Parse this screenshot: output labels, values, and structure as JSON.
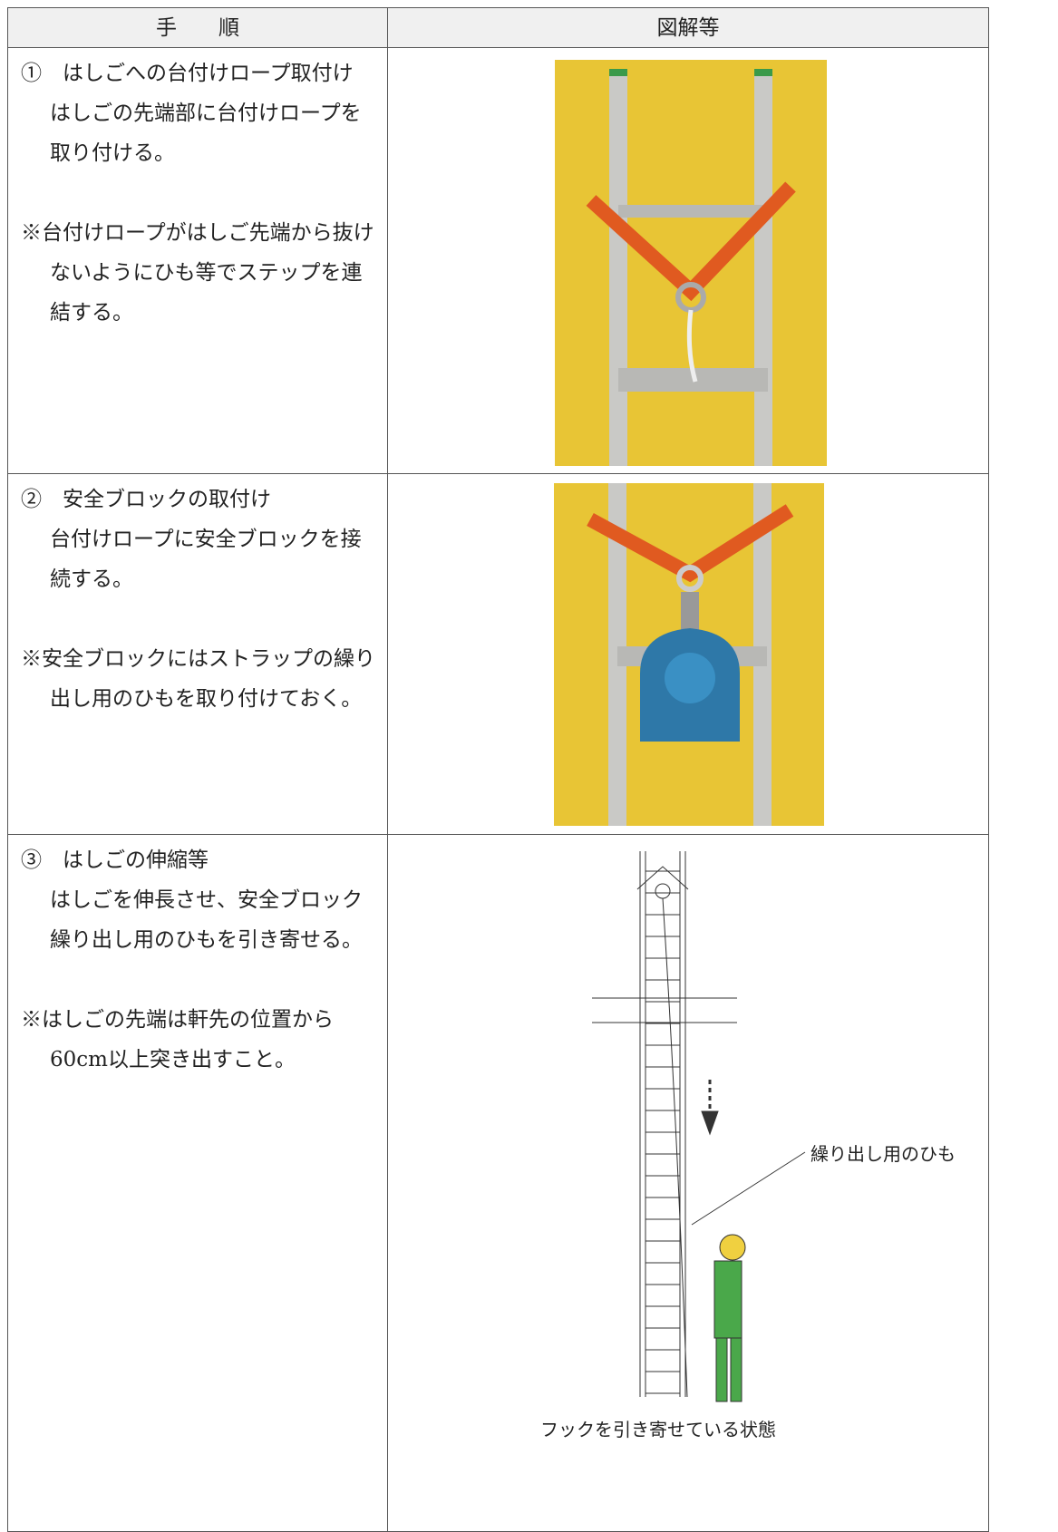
{
  "table": {
    "header": [
      "手　　順",
      "図解等"
    ],
    "rows": [
      {
        "title": "①　はしごへの台付けロープ取付け",
        "body": "はしごの先端部に台付けロープを取り付ける。",
        "note": "※台付けロープがはしご先端から抜けないようにひも等でステップを連結する。"
      },
      {
        "title": "②　安全ブロックの取付け",
        "body": "台付けロープに安全ブロックを接続する。",
        "note": "※安全ブロックにはストラップの繰り出し用のひもを取り付けておく。"
      },
      {
        "title": "③　はしごの伸縮等",
        "body": "はしごを伸長させ、安全ブロック繰り出し用のひもを引き寄せる。",
        "note": "※はしごの先端は軒先の位置から60cm以上突き出すこと。",
        "label": "繰り出し用のひも",
        "caption": "フックを引き寄せている状態"
      }
    ]
  }
}
